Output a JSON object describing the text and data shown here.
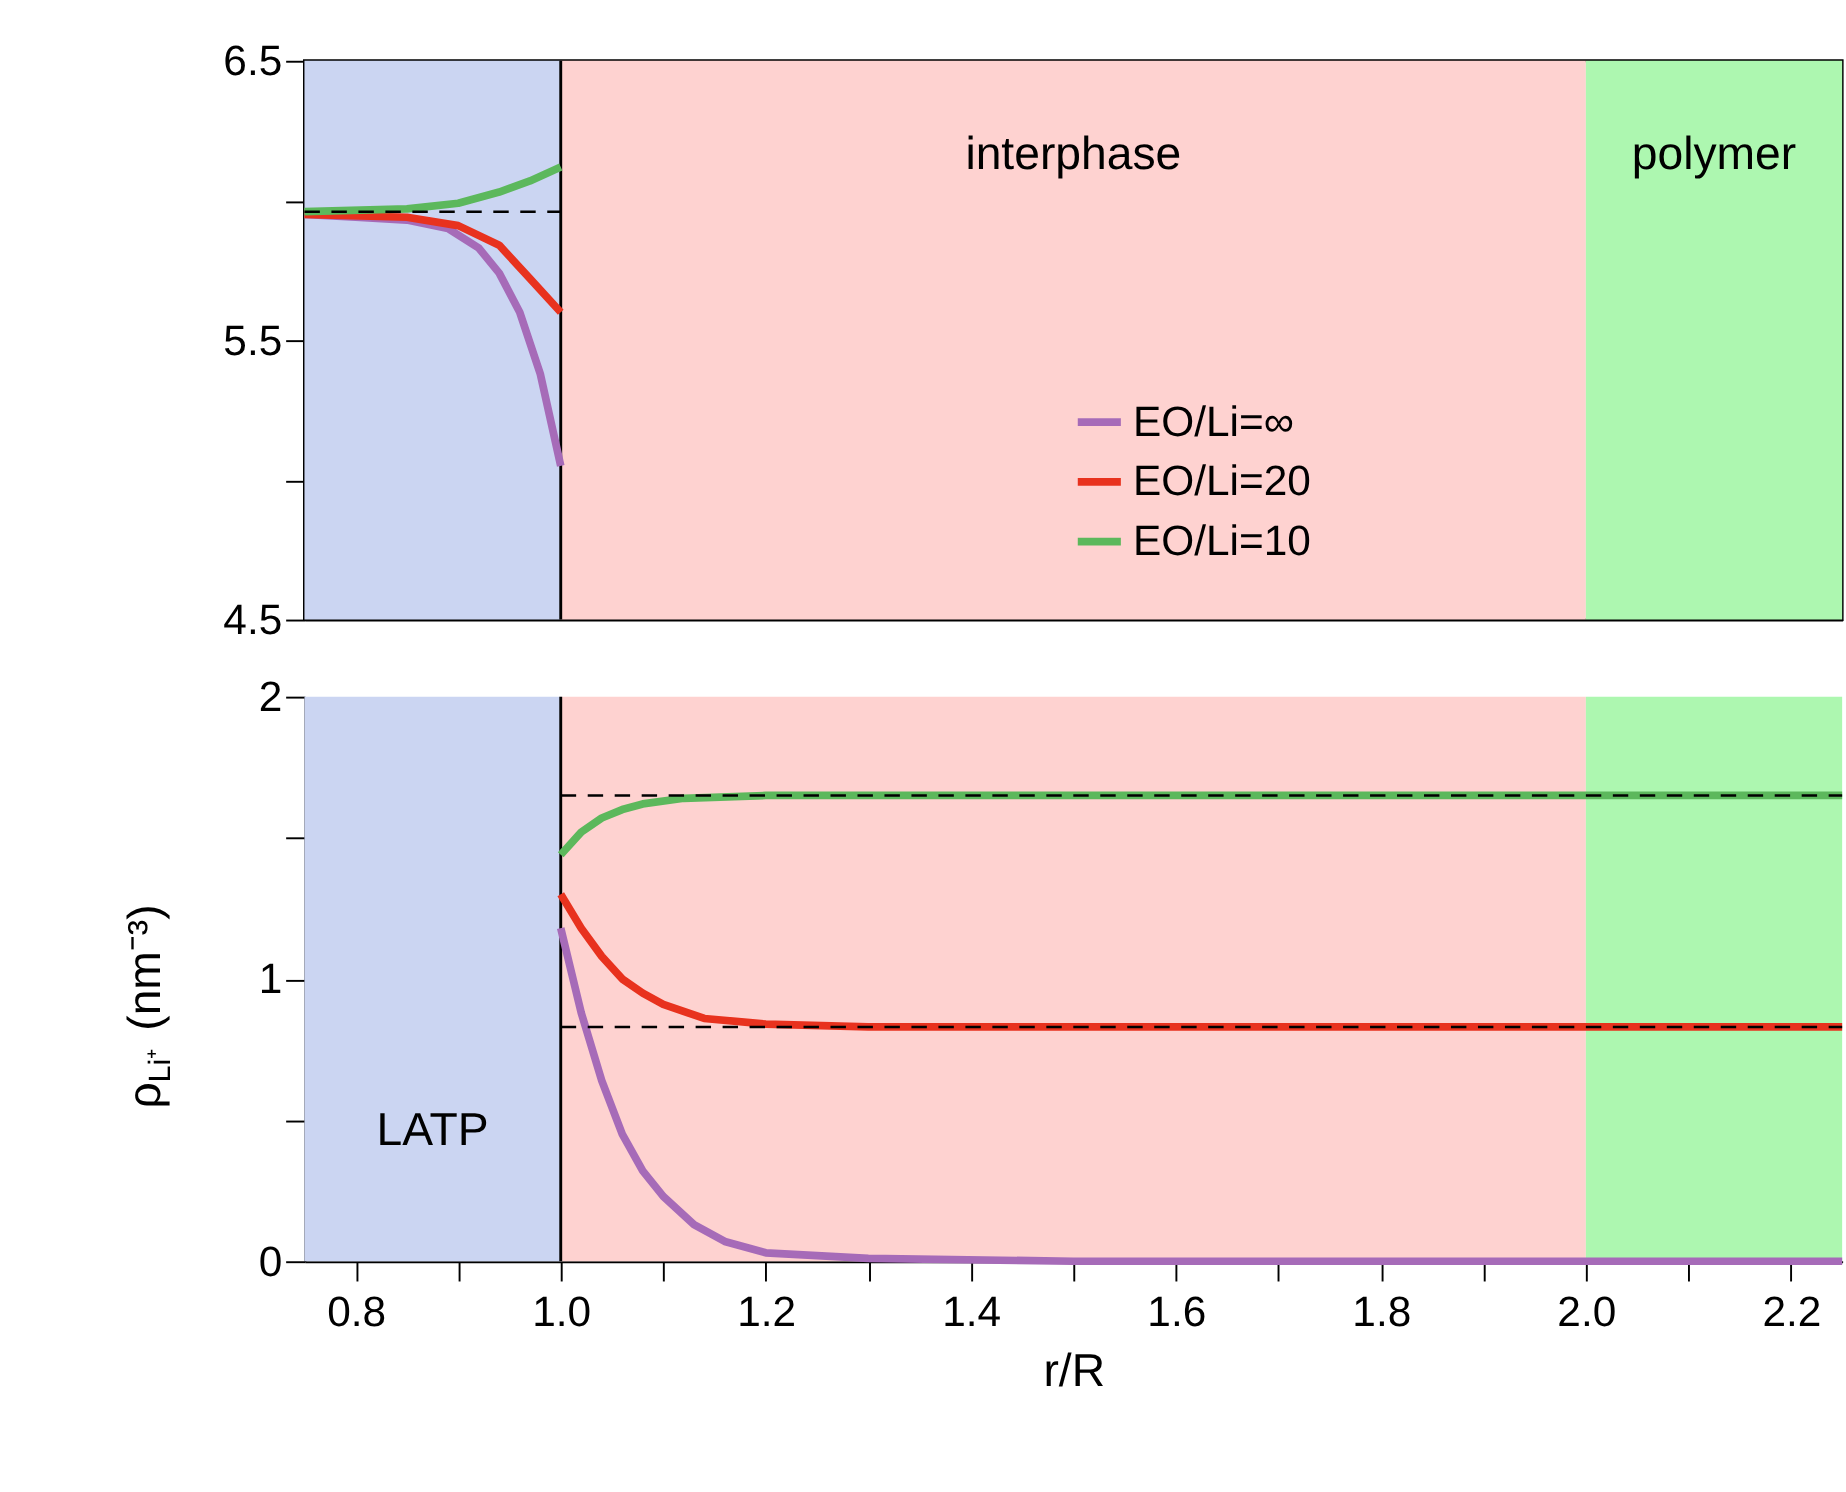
{
  "chart_data": [
    {
      "type": "line",
      "xlim": [
        0.75,
        2.25
      ],
      "ylim": [
        4.5,
        6.5
      ],
      "yticks": [
        4.5,
        {
          "value": 5,
          "label": null
        },
        5.5,
        {
          "value": 6,
          "label": null
        },
        6.5
      ],
      "tick_labels": "y",
      "grid": false,
      "legend": "bottom",
      "series": [
        {
          "name": "EO/Li=∞",
          "color": "#a66bb8",
          "x": [
            0.75,
            0.8,
            0.85,
            0.89,
            0.92,
            0.94,
            0.96,
            0.98,
            1.0
          ],
          "values": [
            5.95,
            5.94,
            5.93,
            5.9,
            5.83,
            5.74,
            5.6,
            5.38,
            5.05
          ]
        },
        {
          "name": "EO/Li=20",
          "color": "#e8321e",
          "x": [
            0.75,
            0.85,
            0.9,
            0.94,
            0.97,
            1.0
          ],
          "values": [
            5.95,
            5.94,
            5.91,
            5.84,
            5.72,
            5.6
          ]
        },
        {
          "name": "EO/Li=10",
          "color": "#5cb85c",
          "x": [
            0.75,
            0.85,
            0.9,
            0.94,
            0.97,
            1.0
          ],
          "values": [
            5.96,
            5.97,
            5.99,
            6.03,
            6.07,
            6.12
          ]
        },
        {
          "color": "#000000",
          "line_style": "dashed",
          "x": [
            0.75,
            1.0
          ],
          "values": [
            5.96,
            5.96
          ]
        }
      ],
      "bands": [
        {
          "axis": "x",
          "from": 0.75,
          "to": 1.0,
          "color": "#cbd5f2"
        },
        {
          "axis": "x",
          "from": 1.0,
          "to": 2.0,
          "color": "#fed2d0",
          "label": "interphase"
        },
        {
          "axis": "x",
          "from": 2.0,
          "to": 2.25,
          "color": "#adf7b0",
          "label": "polymer"
        }
      ],
      "ref_lines": [
        {
          "axis": "x",
          "value": 1.0,
          "color": "#000000"
        }
      ]
    },
    {
      "type": "line",
      "xlabel": "r/R",
      "ylabel": "ρ$_{Li⁺}$ (nm⁻³)",
      "xlim": [
        0.75,
        2.25
      ],
      "ylim": [
        0,
        2
      ],
      "xticks": [
        0.8,
        {
          "value": 0.9,
          "label": null
        },
        {
          "value": 1,
          "label": "1.0"
        },
        {
          "value": 1.1,
          "label": null
        },
        1.2,
        {
          "value": 1.3,
          "label": null
        },
        1.4,
        {
          "value": 1.5,
          "label": null
        },
        1.6,
        {
          "value": 1.7,
          "label": null
        },
        1.8,
        {
          "value": 1.9,
          "label": null
        },
        {
          "value": 2,
          "label": "2.0"
        },
        {
          "value": 2.1,
          "label": null
        },
        2.2
      ],
      "yticks": [
        0,
        {
          "value": 0.5,
          "label": null
        },
        1,
        {
          "value": 1.5,
          "label": null
        },
        2
      ],
      "grid": false,
      "series": [
        {
          "color": "#a66bb8",
          "x": [
            1.0,
            1.02,
            1.04,
            1.06,
            1.08,
            1.1,
            1.13,
            1.16,
            1.2,
            1.3,
            1.5,
            2.25
          ],
          "values": [
            1.18,
            0.88,
            0.64,
            0.45,
            0.32,
            0.23,
            0.13,
            0.07,
            0.03,
            0.01,
            0.0,
            0.0
          ]
        },
        {
          "color": "#e8321e",
          "x": [
            1.0,
            1.02,
            1.04,
            1.06,
            1.08,
            1.1,
            1.14,
            1.2,
            1.3,
            2.25
          ],
          "values": [
            1.3,
            1.18,
            1.08,
            1.0,
            0.95,
            0.91,
            0.86,
            0.84,
            0.83,
            0.83
          ]
        },
        {
          "color": "#5cb85c",
          "x": [
            1.0,
            1.02,
            1.04,
            1.06,
            1.08,
            1.12,
            1.2,
            2.25
          ],
          "values": [
            1.44,
            1.52,
            1.57,
            1.6,
            1.62,
            1.64,
            1.65,
            1.65
          ]
        },
        {
          "color": "#000000",
          "line_style": "dashed",
          "x": [
            1.0,
            2.25
          ],
          "values": [
            1.65,
            1.65
          ]
        },
        {
          "color": "#000000",
          "line_style": "dashed",
          "x": [
            1.0,
            2.25
          ],
          "values": [
            0.83,
            0.83
          ]
        }
      ],
      "bands": [
        {
          "axis": "x",
          "from": 0.75,
          "to": 1.0,
          "color": "#cbd5f2",
          "label": "LATP"
        },
        {
          "axis": "x",
          "from": 1.0,
          "to": 2.0,
          "color": "#fed2d0"
        },
        {
          "axis": "x",
          "from": 2.0,
          "to": 2.25,
          "color": "#adf7b0"
        }
      ],
      "ref_lines": [
        {
          "axis": "x",
          "value": 1.0,
          "color": "#000000"
        }
      ]
    }
  ]
}
